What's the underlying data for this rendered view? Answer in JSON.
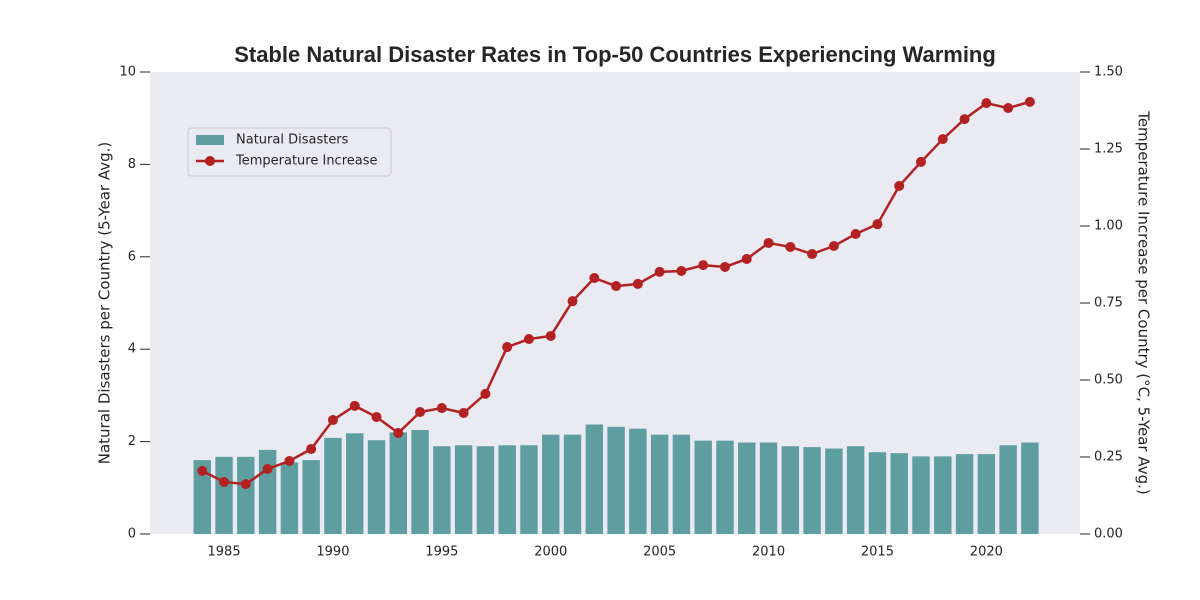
{
  "chart_data": {
    "type": "bar-line",
    "title": "Stable Natural Disaster Rates in Top-50 Countries Experiencing Warming",
    "ylabel": "Natural Disasters per Country (5-Year Avg.)",
    "y2label": "Temperature Increase per Country (°C, 5-Year Avg.)",
    "x": [
      1984,
      1985,
      1986,
      1987,
      1988,
      1989,
      1990,
      1991,
      1992,
      1993,
      1994,
      1995,
      1996,
      1997,
      1998,
      1999,
      2000,
      2001,
      2002,
      2003,
      2004,
      2005,
      2006,
      2007,
      2008,
      2009,
      2010,
      2011,
      2012,
      2013,
      2014,
      2015,
      2016,
      2017,
      2018,
      2019,
      2020,
      2021,
      2022
    ],
    "series": [
      {
        "name": "Natural Disasters",
        "type": "bar",
        "color": "#5f9ea0",
        "values": [
          1.6,
          1.67,
          1.67,
          1.82,
          1.55,
          1.6,
          2.08,
          2.18,
          2.03,
          2.2,
          2.25,
          1.9,
          1.92,
          1.9,
          1.92,
          1.92,
          2.15,
          2.15,
          2.37,
          2.32,
          2.28,
          2.15,
          2.15,
          2.02,
          2.02,
          1.98,
          1.98,
          1.9,
          1.88,
          1.85,
          1.9,
          1.77,
          1.75,
          1.68,
          1.68,
          1.73,
          1.73,
          1.92,
          1.98
        ]
      },
      {
        "name": "Temperature Increase",
        "type": "line",
        "axis": "y2",
        "color": "#b22222",
        "values": [
          0.205,
          0.169,
          0.162,
          0.211,
          0.237,
          0.276,
          0.37,
          0.416,
          0.38,
          0.328,
          0.396,
          0.409,
          0.393,
          0.455,
          0.607,
          0.633,
          0.643,
          0.756,
          0.831,
          0.805,
          0.812,
          0.851,
          0.854,
          0.873,
          0.867,
          0.893,
          0.945,
          0.932,
          0.909,
          0.935,
          0.974,
          1.006,
          1.13,
          1.208,
          1.282,
          1.347,
          1.399,
          1.383,
          1.403
        ]
      }
    ],
    "xlim": [
      1981.6,
      2024.3
    ],
    "xticks": [
      1985,
      1990,
      1995,
      2000,
      2005,
      2010,
      2015,
      2020
    ],
    "ylim": [
      0,
      10
    ],
    "yticks": [
      0,
      2,
      4,
      6,
      8,
      10
    ],
    "y2lim": [
      0,
      1.5
    ],
    "y2ticks": [
      {
        "value": 0,
        "label": "0.00"
      },
      {
        "value": 0.25,
        "label": "0.25"
      },
      {
        "value": 0.5,
        "label": "0.50"
      },
      {
        "value": 0.75,
        "label": "0.75"
      },
      {
        "value": 1,
        "label": "1.00"
      },
      {
        "value": 1.25,
        "label": "1.25"
      },
      {
        "value": 1.5,
        "label": "1.50"
      }
    ],
    "grid": false,
    "legend": "upper left",
    "background": "#eaeaf2"
  }
}
